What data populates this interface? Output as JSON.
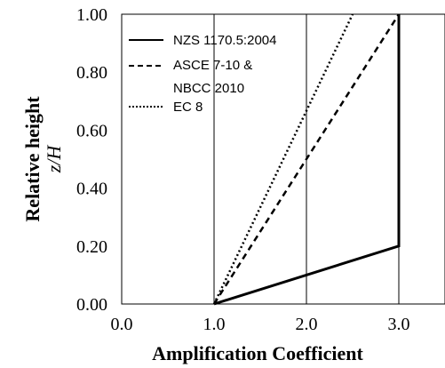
{
  "chart_data": {
    "type": "line",
    "xlabel": "Amplification Coefficient",
    "ylabel": "Relative height",
    "ylabel_sub": "z/H",
    "xlim": [
      0,
      3.5
    ],
    "ylim": [
      0,
      1.0
    ],
    "x_ticks": [
      0,
      1,
      2,
      3
    ],
    "x_tick_labels": [
      "0.0",
      "1.0",
      "2.0",
      "3.0"
    ],
    "y_ticks": [
      0,
      0.2,
      0.4,
      0.6,
      0.8,
      1.0
    ],
    "y_tick_labels": [
      "0.00",
      "0.20",
      "0.40",
      "0.60",
      "0.80",
      "1.00"
    ],
    "grid": "vertical",
    "legend_position": "top-left",
    "series": [
      {
        "name": "NZS 1170.5:2004",
        "style": "solid",
        "points": [
          [
            1.0,
            0.0
          ],
          [
            3.0,
            0.2
          ],
          [
            3.0,
            1.0
          ]
        ]
      },
      {
        "name": "ASCE 7-10 & NBCC 2010",
        "legend_lines": [
          "ASCE 7-10 &",
          "NBCC 2010"
        ],
        "style": "dashed",
        "points": [
          [
            1.0,
            0.0
          ],
          [
            3.0,
            1.0
          ]
        ]
      },
      {
        "name": "EC 8",
        "style": "dotted",
        "points": [
          [
            1.0,
            0.0
          ],
          [
            2.5,
            1.0
          ]
        ]
      }
    ],
    "colors": {
      "line": "#000000",
      "grid": "#000000",
      "background": "#ffffff"
    }
  }
}
